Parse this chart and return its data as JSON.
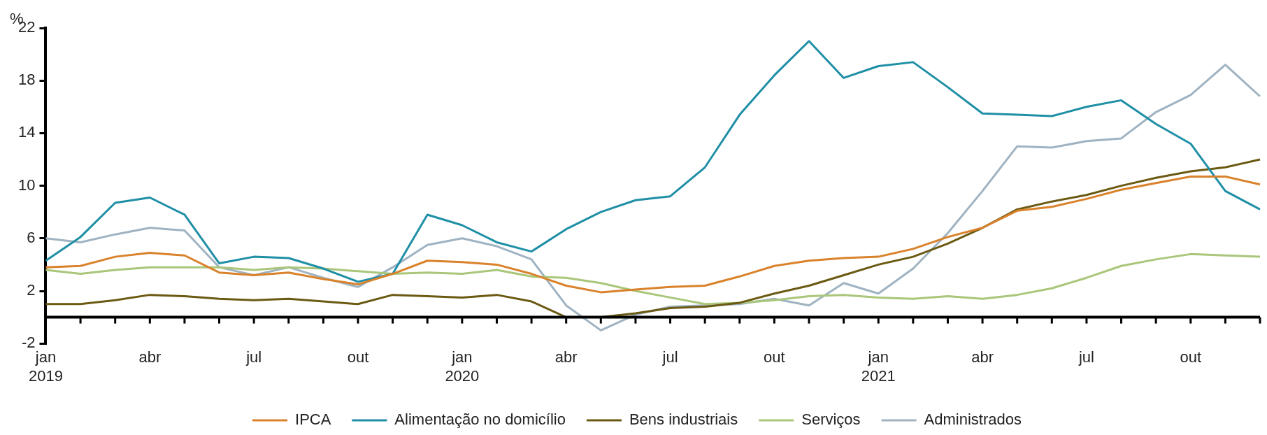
{
  "chart_data": {
    "type": "line",
    "ylabel": "%",
    "categories": [
      "jan\n2019",
      null,
      null,
      "abr",
      null,
      null,
      "jul",
      null,
      null,
      "out",
      null,
      null,
      "jan\n2020",
      null,
      null,
      "abr",
      null,
      null,
      "jul",
      null,
      null,
      "out",
      null,
      null,
      "jan\n2021",
      null,
      null,
      "abr",
      null,
      null,
      "jul",
      null,
      null,
      "out",
      null,
      null
    ],
    "series": [
      {
        "name": "IPCA",
        "color": "#d9822b",
        "values": [
          3.8,
          3.9,
          4.6,
          4.9,
          4.7,
          3.4,
          3.2,
          3.4,
          2.9,
          2.5,
          3.3,
          4.3,
          4.2,
          4.0,
          3.3,
          2.4,
          1.9,
          2.1,
          2.3,
          2.4,
          3.1,
          3.9,
          4.3,
          4.5,
          4.6,
          5.2,
          6.1,
          6.8,
          8.1,
          8.4,
          9.0,
          9.7,
          10.2,
          10.7,
          10.7,
          10.1
        ]
      },
      {
        "name": "Alimentação no domicílio",
        "color": "#1f8fa6",
        "values": [
          4.3,
          6.1,
          8.7,
          9.1,
          7.8,
          4.1,
          4.6,
          4.5,
          3.7,
          2.7,
          3.3,
          7.8,
          7.0,
          5.7,
          5.0,
          6.7,
          8.0,
          8.9,
          9.2,
          11.4,
          15.4,
          18.4,
          21.0,
          18.2,
          19.1,
          19.4,
          17.5,
          15.5,
          15.4,
          15.3,
          16.0,
          16.5,
          14.7,
          13.2,
          9.6,
          8.2
        ]
      },
      {
        "name": "Bens industriais",
        "color": "#6b5a12",
        "values": [
          1.0,
          1.0,
          1.3,
          1.7,
          1.6,
          1.4,
          1.3,
          1.4,
          1.2,
          1.0,
          1.7,
          1.6,
          1.5,
          1.7,
          1.2,
          0.0,
          0.0,
          0.3,
          0.7,
          0.8,
          1.1,
          1.8,
          2.4,
          3.2,
          4.0,
          4.6,
          5.6,
          6.8,
          8.2,
          8.8,
          9.3,
          10.0,
          10.6,
          11.1,
          11.4,
          12.0
        ]
      },
      {
        "name": "Serviços",
        "color": "#a9c67a",
        "values": [
          3.6,
          3.3,
          3.6,
          3.8,
          3.8,
          3.8,
          3.6,
          3.8,
          3.7,
          3.5,
          3.3,
          3.4,
          3.3,
          3.6,
          3.1,
          3.0,
          2.6,
          2.0,
          1.5,
          1.0,
          1.1,
          1.3,
          1.6,
          1.7,
          1.5,
          1.4,
          1.6,
          1.4,
          1.7,
          2.2,
          3.0,
          3.9,
          4.4,
          4.8,
          4.7,
          4.6
        ]
      },
      {
        "name": "Administrados",
        "color": "#9fb3c2",
        "values": [
          6.0,
          5.7,
          6.3,
          6.8,
          6.6,
          3.8,
          3.2,
          3.8,
          3.0,
          2.3,
          3.8,
          5.5,
          6.0,
          5.4,
          4.4,
          0.9,
          -1.0,
          0.2,
          0.8,
          0.9,
          1.0,
          1.4,
          0.9,
          2.6,
          1.8,
          3.7,
          6.4,
          9.6,
          13.0,
          12.9,
          13.4,
          13.6,
          15.6,
          16.9,
          19.2,
          16.8
        ]
      }
    ],
    "ylim": [
      -2,
      22
    ],
    "yticks": [
      -2,
      2,
      6,
      10,
      14,
      18,
      22
    ],
    "grid": false,
    "legend": "bottom",
    "marker": "none",
    "line_style": "solid"
  }
}
